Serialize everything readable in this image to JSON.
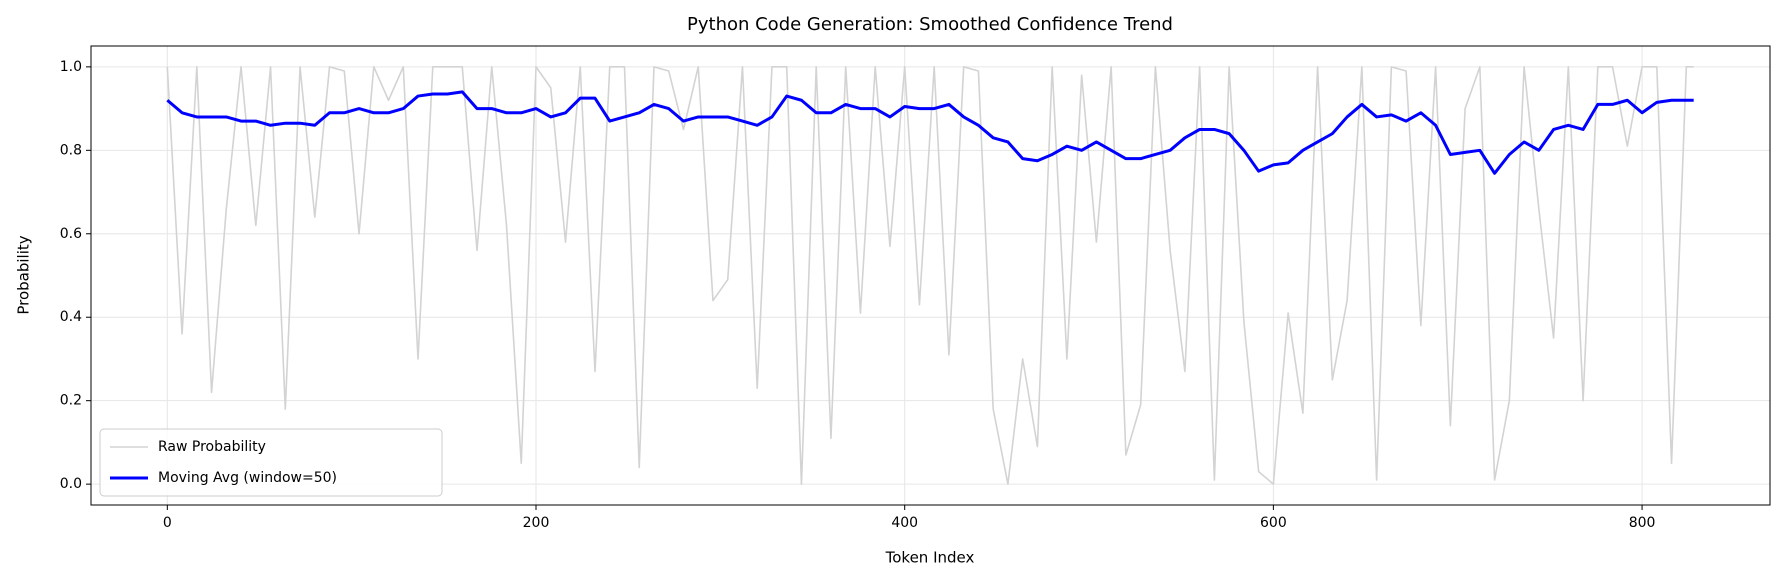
{
  "chart_data": {
    "type": "line",
    "title": "Python Code Generation: Smoothed Confidence Trend",
    "xlabel": "Token Index",
    "ylabel": "Probability",
    "x": [
      0,
      8,
      16,
      24,
      32,
      40,
      48,
      56,
      64,
      72,
      80,
      88,
      96,
      104,
      112,
      120,
      128,
      136,
      144,
      152,
      160,
      168,
      176,
      184,
      192,
      200,
      208,
      216,
      224,
      232,
      240,
      248,
      256,
      264,
      272,
      280,
      288,
      296,
      304,
      312,
      320,
      328,
      336,
      344,
      352,
      360,
      368,
      376,
      384,
      392,
      400,
      408,
      416,
      424,
      432,
      440,
      448,
      456,
      464,
      472,
      480,
      488,
      496,
      504,
      512,
      520,
      528,
      536,
      544,
      552,
      560,
      568,
      576,
      584,
      592,
      600,
      608,
      616,
      624,
      632,
      640,
      648,
      656,
      664,
      672,
      680,
      688,
      696,
      704,
      712,
      720,
      728,
      736,
      744,
      752,
      760,
      768,
      776,
      784,
      792,
      800,
      808,
      816,
      824,
      828
    ],
    "series": [
      {
        "name": "Raw Probability",
        "color": "#d3d3d3",
        "width": 1.6,
        "values": [
          1.0,
          0.36,
          1.0,
          0.22,
          0.66,
          1.0,
          0.62,
          1.0,
          0.18,
          1.0,
          0.64,
          1.0,
          0.99,
          0.6,
          1.0,
          0.92,
          1.0,
          0.3,
          1.0,
          1.0,
          1.0,
          0.56,
          1.0,
          0.62,
          0.05,
          1.0,
          0.95,
          0.58,
          1.0,
          0.27,
          1.0,
          1.0,
          0.04,
          1.0,
          0.99,
          0.85,
          1.0,
          0.44,
          0.49,
          1.0,
          0.23,
          1.0,
          1.0,
          0.0,
          1.0,
          0.11,
          1.0,
          0.41,
          1.0,
          0.57,
          1.0,
          0.43,
          1.0,
          0.31,
          1.0,
          0.99,
          0.18,
          0.0,
          0.3,
          0.09,
          1.0,
          0.3,
          0.98,
          0.58,
          1.0,
          0.07,
          0.19,
          1.0,
          0.56,
          0.27,
          1.0,
          0.01,
          1.0,
          0.39,
          0.03,
          0.0,
          0.41,
          0.17,
          1.0,
          0.25,
          0.44,
          1.0,
          0.01,
          1.0,
          0.99,
          0.38,
          1.0,
          0.14,
          0.9,
          1.0,
          0.01,
          0.2,
          1.0,
          0.66,
          0.35,
          1.0,
          0.2,
          1.0,
          1.0,
          0.81,
          1.0,
          1.0,
          0.05,
          1.0,
          1.0
        ]
      },
      {
        "name": "Moving Avg (window=50)",
        "color": "#0000ff",
        "width": 3,
        "values": [
          0.92,
          0.89,
          0.88,
          0.88,
          0.88,
          0.87,
          0.87,
          0.86,
          0.865,
          0.865,
          0.86,
          0.89,
          0.89,
          0.9,
          0.89,
          0.89,
          0.9,
          0.93,
          0.935,
          0.935,
          0.94,
          0.9,
          0.9,
          0.89,
          0.89,
          0.9,
          0.88,
          0.89,
          0.925,
          0.925,
          0.87,
          0.88,
          0.89,
          0.91,
          0.9,
          0.87,
          0.88,
          0.88,
          0.88,
          0.87,
          0.86,
          0.88,
          0.93,
          0.92,
          0.89,
          0.89,
          0.91,
          0.9,
          0.9,
          0.88,
          0.905,
          0.9,
          0.9,
          0.91,
          0.88,
          0.86,
          0.83,
          0.82,
          0.78,
          0.775,
          0.79,
          0.81,
          0.8,
          0.82,
          0.8,
          0.78,
          0.78,
          0.79,
          0.8,
          0.83,
          0.85,
          0.85,
          0.84,
          0.8,
          0.75,
          0.765,
          0.77,
          0.8,
          0.82,
          0.84,
          0.88,
          0.91,
          0.88,
          0.885,
          0.87,
          0.89,
          0.86,
          0.79,
          0.795,
          0.8,
          0.745,
          0.79,
          0.82,
          0.8,
          0.85,
          0.86,
          0.85,
          0.91,
          0.91,
          0.92,
          0.89,
          0.915,
          0.92,
          0.92,
          0.92
        ]
      }
    ],
    "xlim": [
      -41.4,
      869.4
    ],
    "ylim": [
      -0.05,
      1.05
    ],
    "xticks": [
      0,
      200,
      400,
      600,
      800
    ],
    "yticks": [
      {
        "value": 0,
        "label": "0.0"
      },
      0.2,
      0.4,
      0.6,
      0.8,
      {
        "value": 1,
        "label": "1.0"
      }
    ],
    "grid": true,
    "legend": "lower left"
  }
}
